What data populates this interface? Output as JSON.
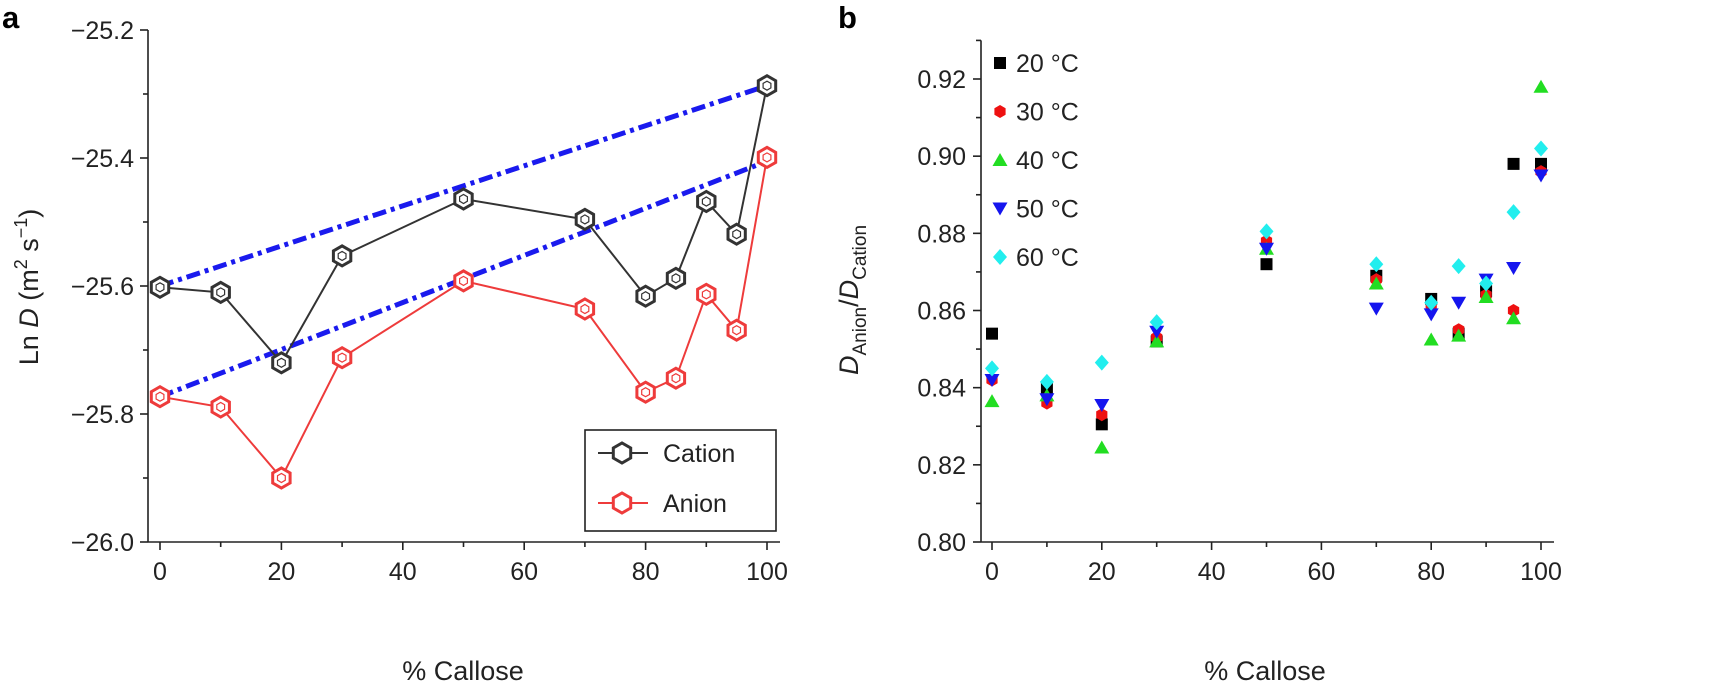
{
  "chart_data": [
    {
      "panel": "a",
      "type": "line",
      "xlabel": "% Callose",
      "ylabel": "Ln D (m² s⁻¹)",
      "ylabel_parts": {
        "prefix": "Ln ",
        "var": "D",
        "unit_open": " (m",
        "sup1": "2",
        "mid": " s",
        "sup2": "−1",
        "unit_close": ")"
      },
      "xlim": [
        0,
        100
      ],
      "ylim": [
        -26.0,
        -25.2
      ],
      "x_ticks": [
        0,
        20,
        40,
        60,
        80,
        100
      ],
      "x_tick_labels": [
        "0",
        "20",
        "40",
        "60",
        "80",
        "100"
      ],
      "y_ticks": [
        -26.0,
        -25.8,
        -25.6,
        -25.4,
        -25.2
      ],
      "y_tick_labels": [
        "−26.0",
        "−25.8",
        "−25.6",
        "−25.4",
        "−25.2"
      ],
      "legend_position": "bottom-right",
      "series": [
        {
          "name": "Cation",
          "color": "#333333",
          "x": [
            0,
            10,
            20,
            30,
            50,
            70,
            80,
            85,
            90,
            95,
            100
          ],
          "y": [
            -25.602,
            -25.61,
            -25.72,
            -25.553,
            -25.464,
            -25.496,
            -25.616,
            -25.588,
            -25.468,
            -25.519,
            -25.287
          ]
        },
        {
          "name": "Anion",
          "color": "#ee3b3b",
          "x": [
            0,
            10,
            20,
            30,
            50,
            70,
            80,
            85,
            90,
            95,
            100
          ],
          "y": [
            -25.773,
            -25.789,
            -25.9,
            -25.712,
            -25.592,
            -25.636,
            -25.766,
            -25.744,
            -25.613,
            -25.669,
            -25.399
          ]
        }
      ],
      "trend_lines": [
        {
          "color": "#1a1aee",
          "x": [
            0,
            100
          ],
          "y": [
            -25.6,
            -25.287
          ]
        },
        {
          "color": "#1a1aee",
          "x": [
            0,
            100
          ],
          "y": [
            -25.773,
            -25.405
          ]
        }
      ]
    },
    {
      "panel": "b",
      "type": "scatter",
      "xlabel": "% Callose",
      "ylabel": "D_Anion/D_Cation",
      "ylabel_parts": {
        "var1": "D",
        "sub1": "Anion",
        "sep": "/",
        "var2": "D",
        "sub2": "Cation"
      },
      "xlim": [
        0,
        100
      ],
      "ylim": [
        0.8,
        0.93
      ],
      "x_ticks": [
        0,
        20,
        40,
        60,
        80,
        100
      ],
      "x_tick_labels": [
        "0",
        "20",
        "40",
        "60",
        "80",
        "100"
      ],
      "y_ticks": [
        0.8,
        0.82,
        0.84,
        0.86,
        0.88,
        0.9,
        0.92
      ],
      "y_tick_labels": [
        "0.80",
        "0.82",
        "0.84",
        "0.86",
        "0.88",
        "0.90",
        "0.92"
      ],
      "legend_position": "top-left",
      "series": [
        {
          "name": "20 °C",
          "marker": "square",
          "color": "#000000",
          "x": [
            0,
            10,
            20,
            30,
            50,
            70,
            80,
            85,
            90,
            95,
            100
          ],
          "y": [
            0.854,
            0.84,
            0.8305,
            0.852,
            0.872,
            0.869,
            0.863,
            0.854,
            0.865,
            0.898,
            0.898
          ]
        },
        {
          "name": "30 °C",
          "marker": "circle",
          "color": "#ee1111",
          "x": [
            0,
            10,
            20,
            30,
            50,
            70,
            80,
            85,
            90,
            95,
            100
          ],
          "y": [
            0.842,
            0.836,
            0.833,
            0.853,
            0.878,
            0.868,
            0.861,
            0.855,
            0.864,
            0.86,
            0.896
          ]
        },
        {
          "name": "40 °C",
          "marker": "triangle-up",
          "color": "#22dd22",
          "x": [
            0,
            10,
            20,
            30,
            50,
            70,
            80,
            85,
            90,
            95,
            100
          ],
          "y": [
            0.8365,
            0.838,
            0.8245,
            0.852,
            0.876,
            0.867,
            0.8525,
            0.8535,
            0.8635,
            0.858,
            0.918
          ]
        },
        {
          "name": "50 °C",
          "marker": "triangle-down",
          "color": "#1515ee",
          "x": [
            0,
            10,
            20,
            30,
            50,
            70,
            80,
            85,
            90,
            95,
            100
          ],
          "y": [
            0.842,
            0.837,
            0.8355,
            0.8545,
            0.876,
            0.8605,
            0.859,
            0.862,
            0.868,
            0.871,
            0.895
          ]
        },
        {
          "name": "60 °C",
          "marker": "diamond",
          "color": "#22eeee",
          "x": [
            0,
            10,
            20,
            30,
            50,
            70,
            80,
            85,
            90,
            95,
            100
          ],
          "y": [
            0.845,
            0.8415,
            0.8465,
            0.857,
            0.8805,
            0.872,
            0.862,
            0.8715,
            0.867,
            0.8855,
            0.902
          ]
        }
      ]
    }
  ]
}
